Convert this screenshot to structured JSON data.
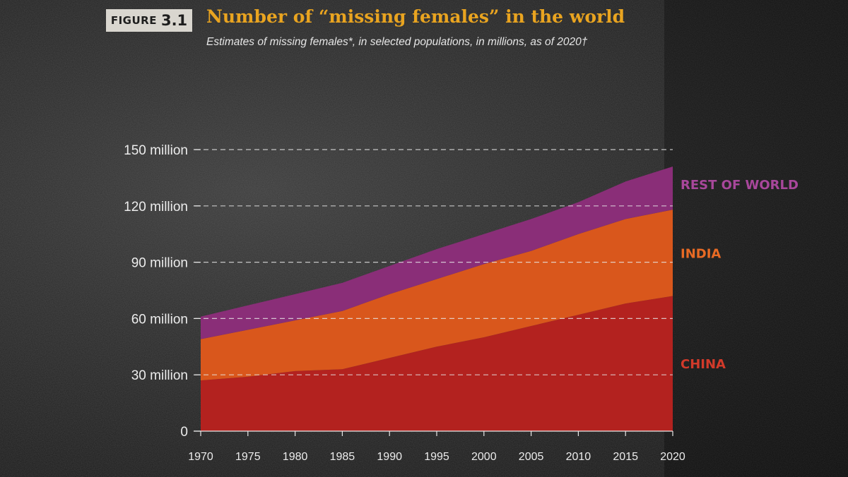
{
  "figure": {
    "word": "FIGURE",
    "number": "3.1"
  },
  "title": "Number of “missing females” in the world",
  "subtitle": "Estimates of missing females*, in selected populations, in millions, as of 2020†",
  "chart_data": {
    "type": "area",
    "stacked": true,
    "title": "Number of “missing females” in the world",
    "subtitle": "Estimates of missing females*, in selected populations, in millions, as of 2020†",
    "x": [
      1970,
      1975,
      1980,
      1985,
      1990,
      1995,
      2000,
      2005,
      2010,
      2015,
      2020
    ],
    "ylim": [
      0,
      150
    ],
    "yticks": [
      0,
      30,
      60,
      90,
      120,
      150
    ],
    "ytick_labels": [
      "0",
      "30 million",
      "60 million",
      "90 million",
      "120 million",
      "150 million"
    ],
    "grid": true,
    "legend": "inline-right",
    "series": [
      {
        "name": "CHINA",
        "color": "#b3221f",
        "label_color": "#d23a2a",
        "values": [
          27,
          29,
          32,
          33,
          39,
          45,
          50,
          56,
          62,
          68,
          72
        ]
      },
      {
        "name": "INDIA",
        "color": "#d9571c",
        "label_color": "#e86a24",
        "values": [
          22,
          25,
          27,
          31,
          34,
          36,
          39,
          40,
          43,
          45,
          46
        ]
      },
      {
        "name": "REST OF WORLD",
        "color": "#8a2e78",
        "label_color": "#a8479b",
        "values": [
          12,
          13,
          14,
          15,
          15,
          16,
          16,
          17,
          17,
          20,
          23
        ]
      }
    ]
  }
}
